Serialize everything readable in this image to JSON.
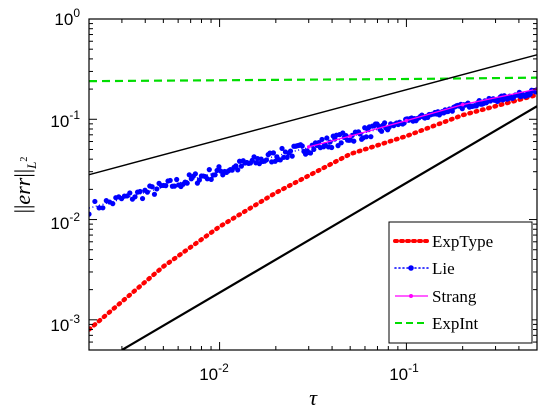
{
  "chart_data": {
    "type": "line",
    "title": "",
    "xlabel": "τ",
    "ylabel": "||err||_{L²}",
    "xscale": "log",
    "yscale": "log",
    "xlim": [
      0.002,
      0.5
    ],
    "ylim": [
      0.0005,
      1
    ],
    "grid": false,
    "legend_position": "bottom-right",
    "x_ticks": [
      {
        "base": "10",
        "exp": "-2",
        "value": 0.01
      },
      {
        "base": "10",
        "exp": "-1",
        "value": 0.1
      }
    ],
    "y_ticks": [
      {
        "base": "10",
        "exp": "0",
        "value": 1
      },
      {
        "base": "10",
        "exp": "-1",
        "value": 0.1
      },
      {
        "base": "10",
        "exp": "-2",
        "value": 0.01
      },
      {
        "base": "10",
        "exp": "-3",
        "value": 0.001
      }
    ],
    "ylabel_parts": {
      "norm_open": "||",
      "var": "err",
      "norm_close": "||",
      "sub": "L",
      "sup": "2"
    },
    "series": [
      {
        "name": "ExpType",
        "color": "#ff0000",
        "style": "dotted-thick",
        "x": [
          0.002,
          0.005,
          0.01,
          0.02,
          0.05,
          0.1,
          0.2,
          0.5
        ],
        "y": [
          0.0008,
          0.0034,
          0.0085,
          0.0185,
          0.045,
          0.068,
          0.11,
          0.175
        ]
      },
      {
        "name": "Lie",
        "color": "#0000ff",
        "style": "dotted-markers",
        "x": [
          0.002,
          0.003,
          0.005,
          0.01,
          0.02,
          0.05,
          0.1,
          0.2,
          0.5
        ],
        "y": [
          0.013,
          0.016,
          0.021,
          0.03,
          0.043,
          0.067,
          0.095,
          0.135,
          0.19
        ]
      },
      {
        "name": "Strang",
        "color": "#ff00ff",
        "style": "solid-markers",
        "x": [
          0.03,
          0.05,
          0.1,
          0.2,
          0.5
        ],
        "y": [
          0.053,
          0.068,
          0.097,
          0.14,
          0.2
        ]
      },
      {
        "name": "ExpInt",
        "color": "#00dd00",
        "style": "dashed",
        "x": [
          0.002,
          0.01,
          0.05,
          0.1,
          0.5
        ],
        "y": [
          0.24,
          0.245,
          0.25,
          0.252,
          0.26
        ]
      },
      {
        "name": "",
        "color": "#000000",
        "style": "reference-thin",
        "x": [
          0.002,
          0.5
        ],
        "y": [
          0.028,
          0.44
        ]
      },
      {
        "name": "",
        "color": "#000000",
        "style": "reference-thick",
        "x": [
          0.003,
          0.5
        ],
        "y": [
          0.0005,
          0.135
        ]
      }
    ]
  }
}
